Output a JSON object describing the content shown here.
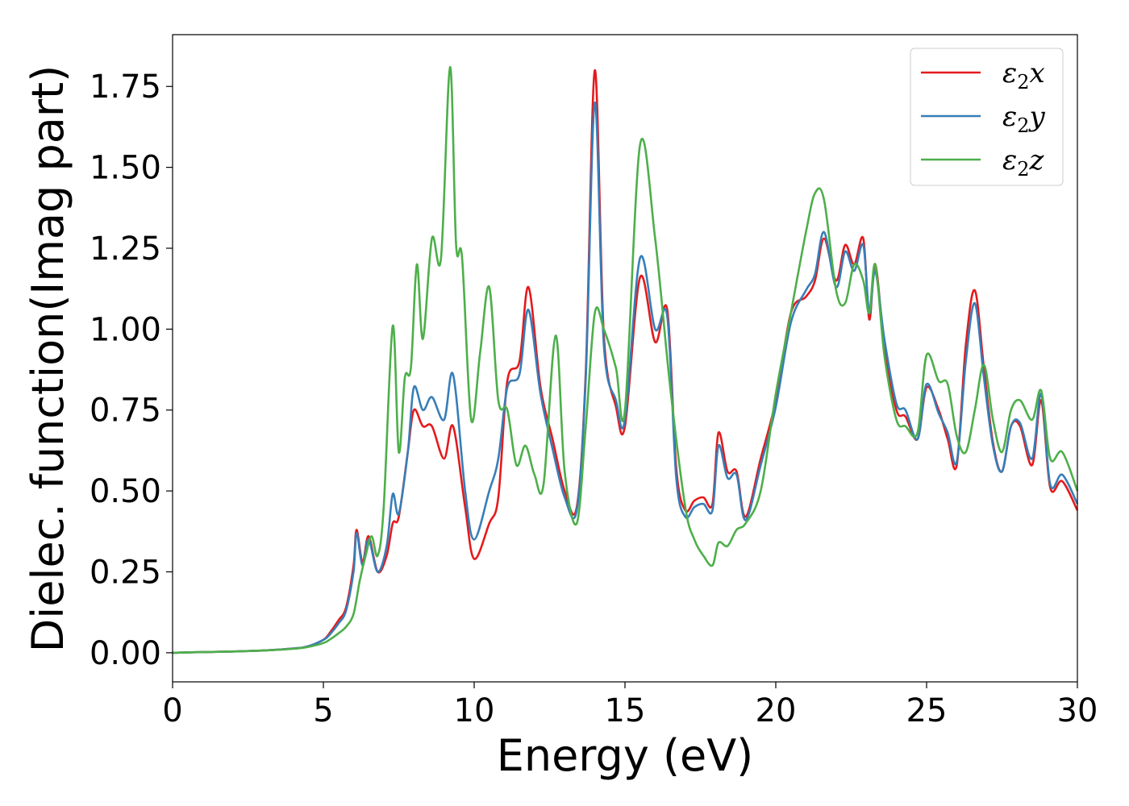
{
  "chart_data": {
    "type": "line",
    "xlabel": "Energy (eV)",
    "ylabel": "Dielec. function(Imag part)",
    "xlim": [
      0,
      30
    ],
    "ylim": [
      -0.09,
      1.91
    ],
    "xticks": [
      0,
      5,
      10,
      15,
      20,
      25,
      30
    ],
    "xtick_labels": [
      "0",
      "5",
      "10",
      "15",
      "20",
      "25",
      "30"
    ],
    "yticks": [
      0.0,
      0.25,
      0.5,
      0.75,
      1.0,
      1.25,
      1.5,
      1.75
    ],
    "ytick_labels": [
      "0.00",
      "0.25",
      "0.50",
      "0.75",
      "1.00",
      "1.25",
      "1.50",
      "1.75"
    ],
    "grid": false,
    "legend_position": "top-right",
    "series": [
      {
        "name": "ε2x",
        "legend": {
          "base": "ε",
          "sub": "2",
          "suffix": "x"
        },
        "color": "#e41a1c",
        "x": [
          0,
          1,
          2,
          3,
          4,
          4.5,
          5,
          5.2,
          5.5,
          5.75,
          6,
          6.1,
          6.3,
          6.5,
          6.8,
          7.1,
          7.3,
          7.5,
          7.8,
          8,
          8.3,
          8.6,
          9,
          9.3,
          9.7,
          10,
          10.5,
          10.8,
          11.1,
          11.5,
          11.8,
          12.2,
          12.6,
          13,
          13.4,
          13.7,
          14,
          14.3,
          14.7,
          15,
          15.5,
          16,
          16.4,
          16.7,
          17,
          17.3,
          17.6,
          17.9,
          18.1,
          18.4,
          18.7,
          19,
          19.5,
          20,
          20.5,
          21,
          21.3,
          21.6,
          22,
          22.3,
          22.6,
          22.9,
          23.1,
          23.3,
          23.6,
          24,
          24.3,
          24.7,
          25,
          25.4,
          25.7,
          26,
          26.3,
          26.6,
          26.9,
          27.2,
          27.5,
          27.8,
          28.1,
          28.5,
          28.8,
          29.1,
          29.5,
          30
        ],
        "y": [
          0,
          0.002,
          0.004,
          0.007,
          0.013,
          0.02,
          0.04,
          0.06,
          0.1,
          0.14,
          0.27,
          0.38,
          0.28,
          0.36,
          0.25,
          0.3,
          0.4,
          0.42,
          0.62,
          0.75,
          0.7,
          0.7,
          0.6,
          0.7,
          0.45,
          0.29,
          0.4,
          0.48,
          0.84,
          0.9,
          1.13,
          0.82,
          0.66,
          0.5,
          0.45,
          0.87,
          1.8,
          0.98,
          0.76,
          0.7,
          1.16,
          0.96,
          1.06,
          0.57,
          0.44,
          0.47,
          0.48,
          0.46,
          0.68,
          0.56,
          0.56,
          0.42,
          0.6,
          0.78,
          1.05,
          1.1,
          1.15,
          1.28,
          1.15,
          1.26,
          1.2,
          1.28,
          1.03,
          1.2,
          0.95,
          0.75,
          0.73,
          0.66,
          0.82,
          0.75,
          0.66,
          0.58,
          0.95,
          1.12,
          0.88,
          0.65,
          0.56,
          0.7,
          0.7,
          0.58,
          0.78,
          0.51,
          0.53,
          0.44
        ]
      },
      {
        "name": "ε2y",
        "legend": {
          "base": "ε",
          "sub": "2",
          "suffix": "y"
        },
        "color": "#377eb8",
        "x": [
          0,
          1,
          2,
          3,
          4,
          4.5,
          5,
          5.2,
          5.5,
          5.75,
          6,
          6.1,
          6.3,
          6.5,
          6.8,
          7.1,
          7.3,
          7.5,
          7.8,
          8,
          8.3,
          8.6,
          9,
          9.3,
          9.7,
          10,
          10.5,
          10.8,
          11.1,
          11.5,
          11.8,
          12.2,
          12.6,
          13,
          13.4,
          13.7,
          14,
          14.3,
          14.7,
          15,
          15.5,
          16,
          16.4,
          16.7,
          17,
          17.3,
          17.6,
          17.9,
          18.1,
          18.4,
          18.7,
          19,
          19.5,
          20,
          20.5,
          21,
          21.3,
          21.6,
          22,
          22.3,
          22.6,
          22.9,
          23.1,
          23.3,
          23.6,
          24,
          24.3,
          24.7,
          25,
          25.4,
          25.7,
          26,
          26.3,
          26.6,
          26.9,
          27.2,
          27.5,
          27.8,
          28.1,
          28.5,
          28.8,
          29.1,
          29.5,
          30
        ],
        "y": [
          0,
          0.002,
          0.004,
          0.007,
          0.013,
          0.02,
          0.04,
          0.055,
          0.09,
          0.13,
          0.25,
          0.37,
          0.27,
          0.35,
          0.25,
          0.33,
          0.49,
          0.43,
          0.62,
          0.82,
          0.75,
          0.79,
          0.72,
          0.86,
          0.5,
          0.35,
          0.5,
          0.6,
          0.82,
          0.86,
          1.06,
          0.8,
          0.63,
          0.48,
          0.44,
          0.85,
          1.7,
          0.95,
          0.78,
          0.72,
          1.22,
          1.0,
          1.04,
          0.54,
          0.42,
          0.45,
          0.46,
          0.44,
          0.64,
          0.54,
          0.55,
          0.41,
          0.58,
          0.76,
          1.02,
          1.12,
          1.17,
          1.3,
          1.13,
          1.24,
          1.18,
          1.26,
          1.05,
          1.18,
          0.97,
          0.77,
          0.75,
          0.66,
          0.83,
          0.74,
          0.68,
          0.59,
          0.9,
          1.08,
          0.85,
          0.64,
          0.56,
          0.7,
          0.71,
          0.6,
          0.8,
          0.52,
          0.55,
          0.46
        ]
      },
      {
        "name": "ε2z",
        "legend": {
          "base": "ε",
          "sub": "2",
          "suffix": "z"
        },
        "color": "#4daf4a",
        "x": [
          0,
          1,
          2,
          3,
          4,
          4.5,
          5,
          5.2,
          5.5,
          5.75,
          6,
          6.2,
          6.4,
          6.6,
          6.8,
          7.0,
          7.3,
          7.5,
          7.7,
          7.9,
          8.1,
          8.3,
          8.6,
          8.9,
          9.2,
          9.4,
          9.6,
          9.9,
          10.2,
          10.5,
          10.8,
          11.1,
          11.4,
          11.7,
          12.0,
          12.3,
          12.7,
          13,
          13.4,
          13.7,
          14,
          14.3,
          14.7,
          15,
          15.5,
          16,
          16.5,
          17,
          17.3,
          17.6,
          17.9,
          18.1,
          18.4,
          18.7,
          19,
          19.5,
          20,
          20.5,
          21,
          21.3,
          21.6,
          22,
          22.3,
          22.6,
          22.9,
          23.1,
          23.3,
          23.6,
          24,
          24.3,
          24.7,
          25,
          25.4,
          25.7,
          26,
          26.3,
          26.6,
          26.9,
          27.2,
          27.5,
          27.8,
          28.1,
          28.5,
          28.8,
          29.1,
          29.5,
          30
        ],
        "y": [
          0,
          0.002,
          0.004,
          0.007,
          0.012,
          0.018,
          0.03,
          0.04,
          0.06,
          0.08,
          0.12,
          0.22,
          0.3,
          0.36,
          0.3,
          0.45,
          1.01,
          0.62,
          0.85,
          0.88,
          1.2,
          0.97,
          1.28,
          1.22,
          1.81,
          1.26,
          1.22,
          0.72,
          0.93,
          1.13,
          0.78,
          0.75,
          0.58,
          0.64,
          0.55,
          0.52,
          0.98,
          0.56,
          0.4,
          0.7,
          1.05,
          1.0,
          0.88,
          0.75,
          1.57,
          1.28,
          0.82,
          0.45,
          0.35,
          0.3,
          0.27,
          0.34,
          0.33,
          0.38,
          0.4,
          0.5,
          0.8,
          1.05,
          1.3,
          1.42,
          1.4,
          1.12,
          1.08,
          1.2,
          1.15,
          1.05,
          1.2,
          0.92,
          0.72,
          0.7,
          0.68,
          0.92,
          0.84,
          0.83,
          0.67,
          0.62,
          0.75,
          0.89,
          0.72,
          0.62,
          0.75,
          0.78,
          0.72,
          0.81,
          0.6,
          0.62,
          0.5
        ]
      }
    ]
  }
}
